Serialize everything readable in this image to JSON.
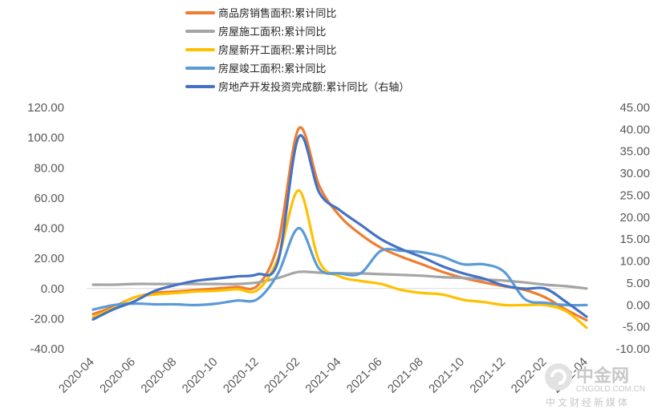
{
  "chart_data": {
    "type": "line",
    "title": "",
    "legend_position": "top",
    "grid": false,
    "x": [
      "2020-04",
      "2020-05",
      "2020-06",
      "2020-07",
      "2020-08",
      "2020-09",
      "2020-10",
      "2020-11",
      "2020-12",
      "2021-01",
      "2021-02",
      "2021-03",
      "2021-04",
      "2021-05",
      "2021-06",
      "2021-07",
      "2021-08",
      "2021-09",
      "2021-10",
      "2021-11",
      "2021-12",
      "2022-01",
      "2022-02",
      "2022-03",
      "2022-04"
    ],
    "x_tick_labels": [
      "2020-04",
      "2020-06",
      "2020-08",
      "2020-10",
      "2020-12",
      "2021-02",
      "2021-04",
      "2021-06",
      "2021-08",
      "2021-10",
      "2021-12",
      "2022-02",
      "2022-04"
    ],
    "y_left": {
      "ticks": [
        "120.00",
        "100.00",
        "80.00",
        "60.00",
        "40.00",
        "20.00",
        "0.00",
        "-20.00",
        "-40.00"
      ],
      "ylim": [
        -40,
        120
      ]
    },
    "y_right": {
      "ticks": [
        "45.00",
        "40.00",
        "35.00",
        "30.00",
        "25.00",
        "20.00",
        "15.00",
        "10.00",
        "5.00",
        "0.00",
        "-5.00",
        "-10.00"
      ],
      "ylim": [
        -10,
        45
      ]
    },
    "series": [
      {
        "name": "商品房销售面积:累计同比",
        "axis": "left",
        "color": "#ED7D31",
        "values": [
          -17,
          -12,
          -6,
          -3,
          -2,
          -1,
          0,
          1,
          2,
          30,
          106,
          68,
          48,
          36,
          27,
          21,
          16,
          11,
          7,
          4,
          1.5,
          -1,
          -6,
          -14,
          -21
        ]
      },
      {
        "name": "房屋施工面积:累计同比",
        "axis": "left",
        "color": "#A5A5A5",
        "values": [
          2.5,
          2.5,
          3,
          3,
          3,
          3,
          3,
          3,
          4,
          7,
          11,
          10.5,
          10,
          10,
          9.5,
          9,
          8.5,
          7.5,
          7,
          6,
          5.2,
          4,
          2.5,
          1.5,
          0
        ]
      },
      {
        "name": "房屋新开工面积:累计同比",
        "axis": "left",
        "color": "#FFC000",
        "values": [
          -19,
          -13,
          -6,
          -4,
          -3,
          -2,
          -1.5,
          -0.5,
          -1,
          20,
          65,
          18,
          8,
          5,
          3,
          -1,
          -3,
          -4,
          -7.5,
          -9,
          -11,
          -11,
          -11,
          -15,
          -26
        ]
      },
      {
        "name": "房屋竣工面积:累计同比",
        "axis": "left",
        "color": "#5B9BD5",
        "values": [
          -14,
          -11,
          -10,
          -10.5,
          -10.5,
          -11,
          -10,
          -8,
          -7,
          10,
          40,
          13,
          10,
          10,
          25,
          25,
          24,
          21,
          16,
          16,
          11,
          -7,
          -9.5,
          -11,
          -11
        ]
      },
      {
        "name": "房地产开发投资完成额:累计同比(右轴)",
        "axis": "right",
        "color": "#4472C4",
        "values": [
          -3.3,
          -1,
          0.8,
          3.2,
          4.5,
          5.5,
          6,
          6.5,
          7,
          10,
          38.3,
          25.6,
          21.6,
          18.3,
          15,
          12.7,
          10.9,
          8.8,
          7.2,
          6,
          4.4,
          3.7,
          3.7,
          0.7,
          -2.7
        ]
      }
    ]
  },
  "legend": {
    "items": [
      {
        "label": "商品房销售面积:累计同比",
        "color": "#ED7D31"
      },
      {
        "label": "房屋施工面积:累计同比",
        "color": "#A5A5A5"
      },
      {
        "label": "房屋新开工面积:累计同比",
        "color": "#FFC000"
      },
      {
        "label": "房屋竣工面积:累计同比",
        "color": "#5B9BD5"
      },
      {
        "label": "房地产开发投资完成额:累计同比（右轴）",
        "color": "#4472C4"
      }
    ]
  },
  "watermark": {
    "main": "中金网",
    "url": "CNGOLD.COM.CN",
    "sub": "中文财经新媒体"
  }
}
